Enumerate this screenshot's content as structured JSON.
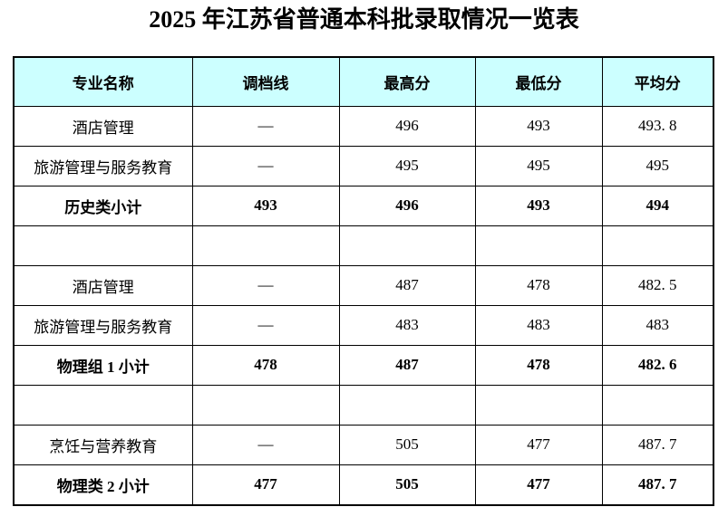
{
  "title": "2025 年江苏省普通本科批录取情况一览表",
  "table": {
    "header_bg": "#CCFFFF",
    "border_color": "#000000",
    "columns": [
      "专业名称",
      "调档线",
      "最高分",
      "最低分",
      "平均分"
    ],
    "rows": [
      {
        "bold": false,
        "cells": [
          "酒店管理",
          "—",
          "496",
          "493",
          "493. 8"
        ]
      },
      {
        "bold": false,
        "cells": [
          "旅游管理与服务教育",
          "—",
          "495",
          "495",
          "495"
        ]
      },
      {
        "bold": true,
        "cells": [
          "历史类小计",
          "493",
          "496",
          "493",
          "494"
        ]
      },
      {
        "bold": false,
        "cells": [
          "",
          "",
          "",
          "",
          ""
        ]
      },
      {
        "bold": false,
        "cells": [
          "酒店管理",
          "—",
          "487",
          "478",
          "482. 5"
        ]
      },
      {
        "bold": false,
        "cells": [
          "旅游管理与服务教育",
          "—",
          "483",
          "483",
          "483"
        ]
      },
      {
        "bold": true,
        "cells": [
          "物理组 1 小计",
          "478",
          "487",
          "478",
          "482. 6"
        ]
      },
      {
        "bold": false,
        "cells": [
          "",
          "",
          "",
          "",
          ""
        ]
      },
      {
        "bold": false,
        "cells": [
          "烹饪与营养教育",
          "—",
          "505",
          "477",
          "487. 7"
        ]
      },
      {
        "bold": true,
        "cells": [
          "物理类 2 小计",
          "477",
          "505",
          "477",
          "487. 7"
        ]
      }
    ]
  }
}
